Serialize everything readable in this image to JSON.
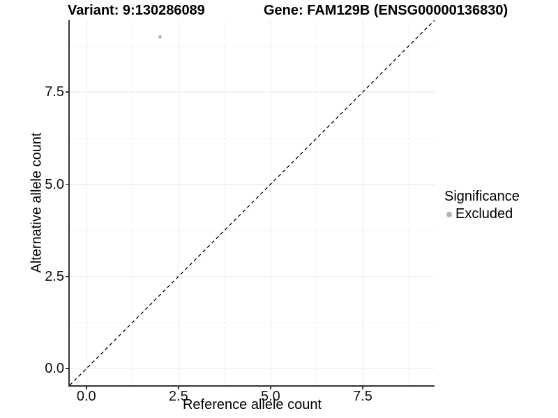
{
  "chart_data": {
    "type": "scatter",
    "titles": {
      "left": "Variant: 9:130286089",
      "right": "Gene: FAM129B (ENSG00000136830)"
    },
    "xlabel": "Reference allele count",
    "ylabel": "Alternative allele count",
    "xlim": [
      -0.45,
      9.45
    ],
    "ylim": [
      -0.45,
      9.45
    ],
    "x_ticks": [
      {
        "value": 0.0,
        "label": "0.0"
      },
      {
        "value": 2.5,
        "label": "2.5"
      },
      {
        "value": 5.0,
        "label": "5.0"
      },
      {
        "value": 7.5,
        "label": "7.5"
      }
    ],
    "y_ticks": [
      {
        "value": 0.0,
        "label": "0.0"
      },
      {
        "value": 2.5,
        "label": "2.5"
      },
      {
        "value": 5.0,
        "label": "5.0"
      },
      {
        "value": 7.5,
        "label": "7.5"
      }
    ],
    "x_minor_breaks": [
      1.25,
      3.75,
      6.25,
      8.75
    ],
    "y_minor_breaks": [
      1.25,
      3.75,
      6.25,
      8.75
    ],
    "grid": {
      "on": true,
      "major_color": "#ebebeb",
      "minor_color": "#f5f5f5"
    },
    "identity_line": {
      "style": "dashed",
      "slope": 1,
      "intercept": 0,
      "color": "#000000"
    },
    "series": [
      {
        "name": "Excluded",
        "color": "#b4b4b4",
        "point_radius": 2.5,
        "points": [
          {
            "x": 2,
            "y": 9
          }
        ]
      }
    ],
    "legend": {
      "title": "Significance",
      "position": "right",
      "items": [
        {
          "label": "Excluded",
          "color": "#b4b4b4"
        }
      ]
    },
    "axis_color": "#333333"
  }
}
